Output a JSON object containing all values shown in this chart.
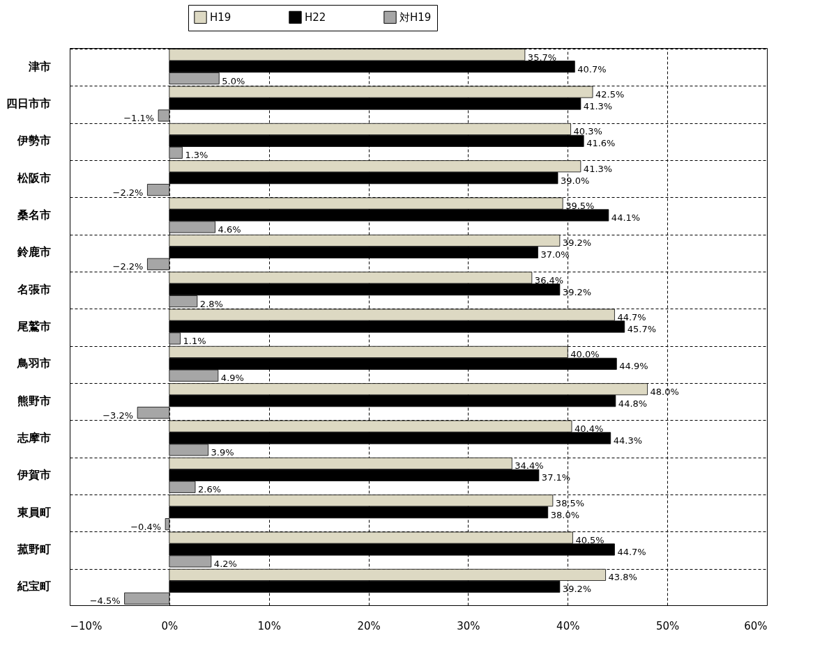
{
  "chart_data": {
    "type": "bar",
    "orientation": "horizontal",
    "categories": [
      "津市",
      "四日市市",
      "伊勢市",
      "松阪市",
      "桑名市",
      "鈴鹿市",
      "名張市",
      "尾鷲市",
      "鳥羽市",
      "熊野市",
      "志摩市",
      "伊賀市",
      "東員町",
      "菰野町",
      "紀宝町"
    ],
    "series": [
      {
        "name": "H19",
        "color": "#ddd9c3",
        "values": [
          35.7,
          42.5,
          40.3,
          41.3,
          39.5,
          39.2,
          36.4,
          44.7,
          40.0,
          48.0,
          40.4,
          34.4,
          38.5,
          40.5,
          43.8
        ],
        "value_labels": [
          "35.7%",
          "42.5%",
          "40.3%",
          "41.3%",
          "39.5%",
          "39.2%",
          "36.4%",
          "44.7%",
          "40.0%",
          "48.0%",
          "40.4%",
          "34.4%",
          "38.5%",
          "40.5%",
          "43.8%"
        ]
      },
      {
        "name": "H22",
        "color": "#000000",
        "values": [
          40.7,
          41.3,
          41.6,
          39.0,
          44.1,
          37.0,
          39.2,
          45.7,
          44.9,
          44.8,
          44.3,
          37.1,
          38.0,
          44.7,
          39.2
        ],
        "value_labels": [
          "40.7%",
          "41.3%",
          "41.6%",
          "39.0%",
          "44.1%",
          "37.0%",
          "39.2%",
          "45.7%",
          "44.9%",
          "44.8%",
          "44.3%",
          "37.1%",
          "38.0%",
          "44.7%",
          "39.2%"
        ]
      },
      {
        "name": "対H19",
        "color": "#a6a6a6",
        "values": [
          5.0,
          -1.1,
          1.3,
          -2.2,
          4.6,
          -2.2,
          2.8,
          1.1,
          4.9,
          -3.2,
          3.9,
          2.6,
          -0.4,
          4.2,
          -4.5
        ],
        "value_labels": [
          "5.0%",
          "−1.1%",
          "1.3%",
          "−2.2%",
          "4.6%",
          "−2.2%",
          "2.8%",
          "1.1%",
          "4.9%",
          "−3.2%",
          "3.9%",
          "2.6%",
          "−0.4%",
          "4.2%",
          "−4.5%"
        ]
      }
    ],
    "xlim": [
      -10,
      60
    ],
    "xticks": [
      {
        "value": -10,
        "label": "−10%"
      },
      {
        "value": 0,
        "label": "0%"
      },
      {
        "value": 10,
        "label": "10%"
      },
      {
        "value": 20,
        "label": "20%"
      },
      {
        "value": 30,
        "label": "30%"
      },
      {
        "value": 40,
        "label": "40%"
      },
      {
        "value": 50,
        "label": "50%"
      },
      {
        "value": 60,
        "label": "60%"
      }
    ],
    "grid": true,
    "legend": "top"
  }
}
